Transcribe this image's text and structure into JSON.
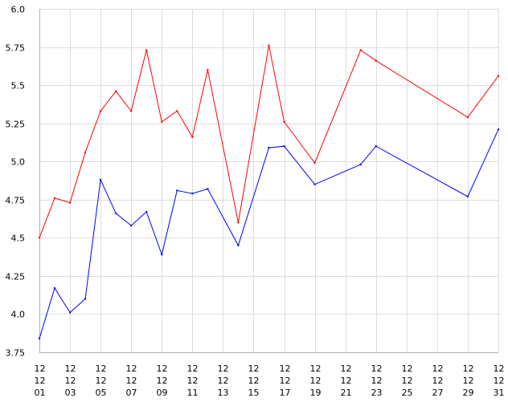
{
  "chart_data": {
    "type": "line",
    "title": "",
    "xlabel": "",
    "ylabel": "",
    "grid": true,
    "ylim": [
      3.75,
      6.0
    ],
    "yticks": [
      "3.75",
      "4.0",
      "4.25",
      "4.5",
      "4.75",
      "5.0",
      "5.25",
      "5.5",
      "5.75",
      "6.0"
    ],
    "xlim": [
      1,
      31
    ],
    "xticks": [
      {
        "day": 1,
        "lines": [
          "12",
          "12",
          "01"
        ]
      },
      {
        "day": 3,
        "lines": [
          "12",
          "12",
          "03"
        ]
      },
      {
        "day": 5,
        "lines": [
          "12",
          "12",
          "05"
        ]
      },
      {
        "day": 7,
        "lines": [
          "12",
          "12",
          "07"
        ]
      },
      {
        "day": 9,
        "lines": [
          "12",
          "12",
          "09"
        ]
      },
      {
        "day": 11,
        "lines": [
          "12",
          "12",
          "11"
        ]
      },
      {
        "day": 13,
        "lines": [
          "12",
          "12",
          "13"
        ]
      },
      {
        "day": 15,
        "lines": [
          "12",
          "12",
          "15"
        ]
      },
      {
        "day": 17,
        "lines": [
          "12",
          "12",
          "17"
        ]
      },
      {
        "day": 19,
        "lines": [
          "12",
          "12",
          "19"
        ]
      },
      {
        "day": 21,
        "lines": [
          "12",
          "12",
          "21"
        ]
      },
      {
        "day": 23,
        "lines": [
          "12",
          "12",
          "23"
        ]
      },
      {
        "day": 25,
        "lines": [
          "12",
          "12",
          "25"
        ]
      },
      {
        "day": 27,
        "lines": [
          "12",
          "12",
          "27"
        ]
      },
      {
        "day": 29,
        "lines": [
          "12",
          "12",
          "29"
        ]
      },
      {
        "day": 31,
        "lines": [
          "12",
          "12",
          "31"
        ]
      }
    ],
    "series": [
      {
        "color": "#ff0000",
        "x": [
          1,
          2,
          3,
          4,
          5,
          6,
          7,
          8,
          9,
          10,
          11,
          12,
          14,
          16,
          17,
          19,
          22,
          23,
          29,
          31
        ],
        "values": [
          4.5,
          4.76,
          4.73,
          5.06,
          5.33,
          5.46,
          5.33,
          5.73,
          5.26,
          5.33,
          5.16,
          5.6,
          4.6,
          5.76,
          5.26,
          4.99,
          5.73,
          5.66,
          5.29,
          5.56
        ]
      },
      {
        "color": "#0000ff",
        "x": [
          1,
          2,
          3,
          4,
          5,
          6,
          7,
          8,
          9,
          10,
          11,
          12,
          14,
          16,
          17,
          19,
          22,
          23,
          29,
          31
        ],
        "values": [
          3.84,
          4.17,
          4.01,
          4.1,
          4.88,
          4.66,
          4.58,
          4.67,
          4.39,
          4.81,
          4.79,
          4.82,
          4.45,
          5.09,
          5.1,
          4.85,
          4.98,
          5.1,
          4.77,
          5.21
        ]
      }
    ]
  }
}
